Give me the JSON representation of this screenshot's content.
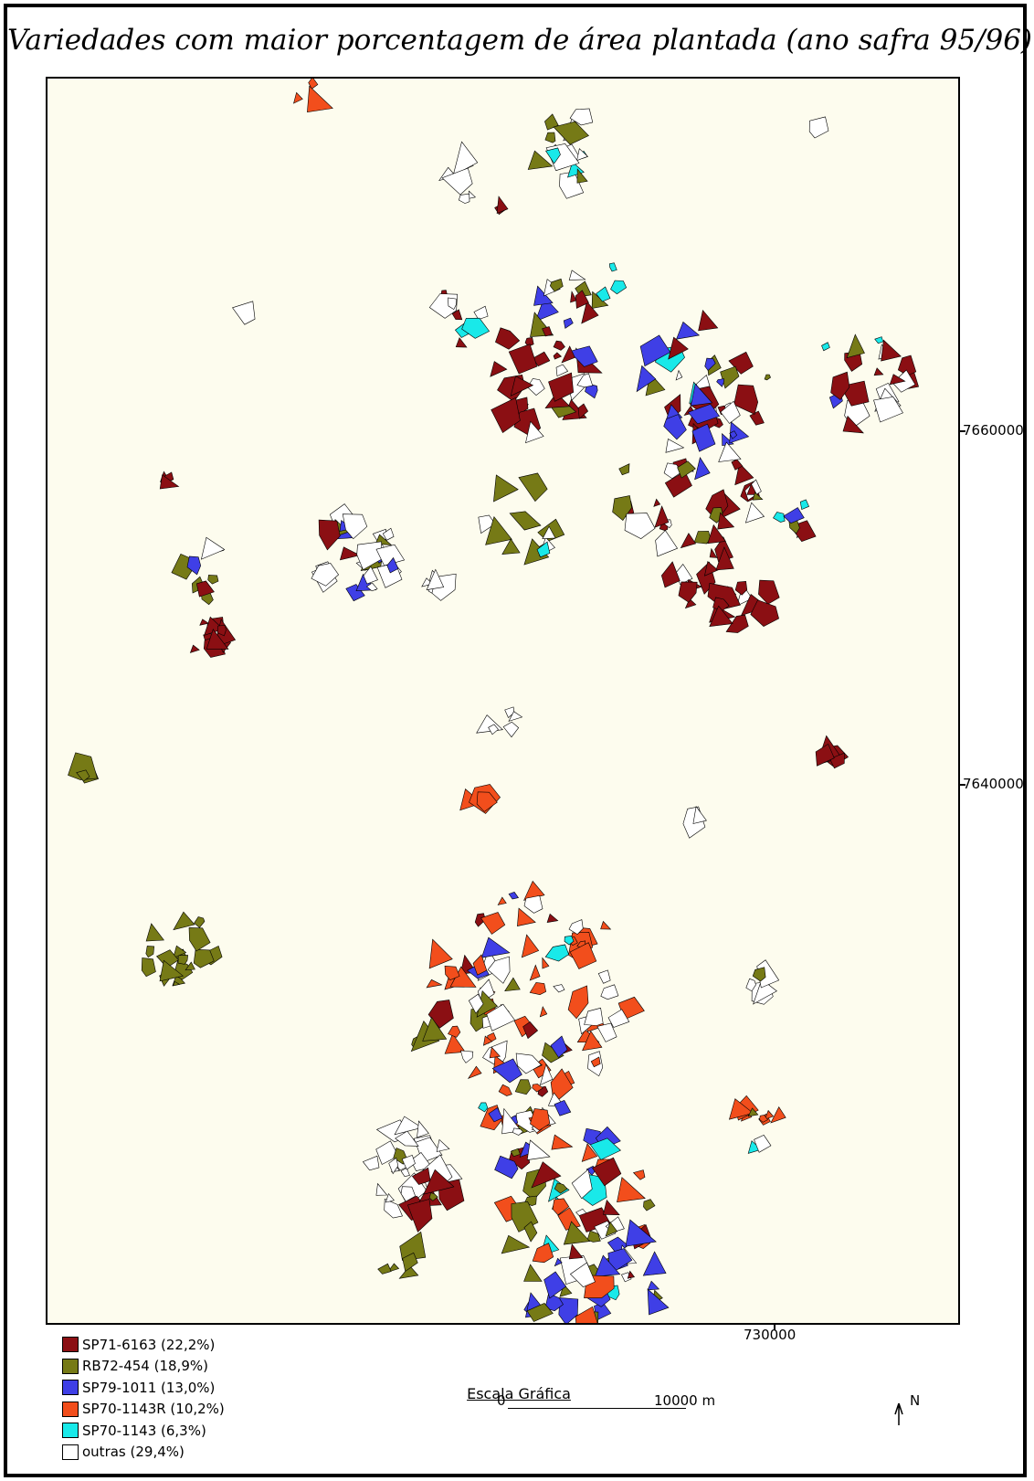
{
  "title": "Variedades com maior porcentagem de área plantada (ano safra 95/96)",
  "coordinates": {
    "y_labels": [
      "7660000",
      "7640000"
    ],
    "x_labels": [
      "730000"
    ]
  },
  "scale": {
    "title": "Escala Gráfica",
    "start_label": "0",
    "end_label": "10000 m"
  },
  "north": {
    "label": "N",
    "icon": "north-arrow-icon"
  },
  "legend": {
    "items": [
      {
        "label": "SP71-6163 (22,2%)",
        "color": "#8b0f13"
      },
      {
        "label": "RB72-454 (18,9%)",
        "color": "#767a16"
      },
      {
        "label": "SP79-1011 (13,0%)",
        "color": "#3f3fe6"
      },
      {
        "label": "SP70-1143R (10,2%)",
        "color": "#f24e1c"
      },
      {
        "label": "SP70-1143 (6,3%)",
        "color": "#19e9e9"
      },
      {
        "label": "outras (29,4%)",
        "color": "#ffffff"
      }
    ]
  },
  "colors": {
    "background": "#fdfcee",
    "border": "#000000"
  }
}
